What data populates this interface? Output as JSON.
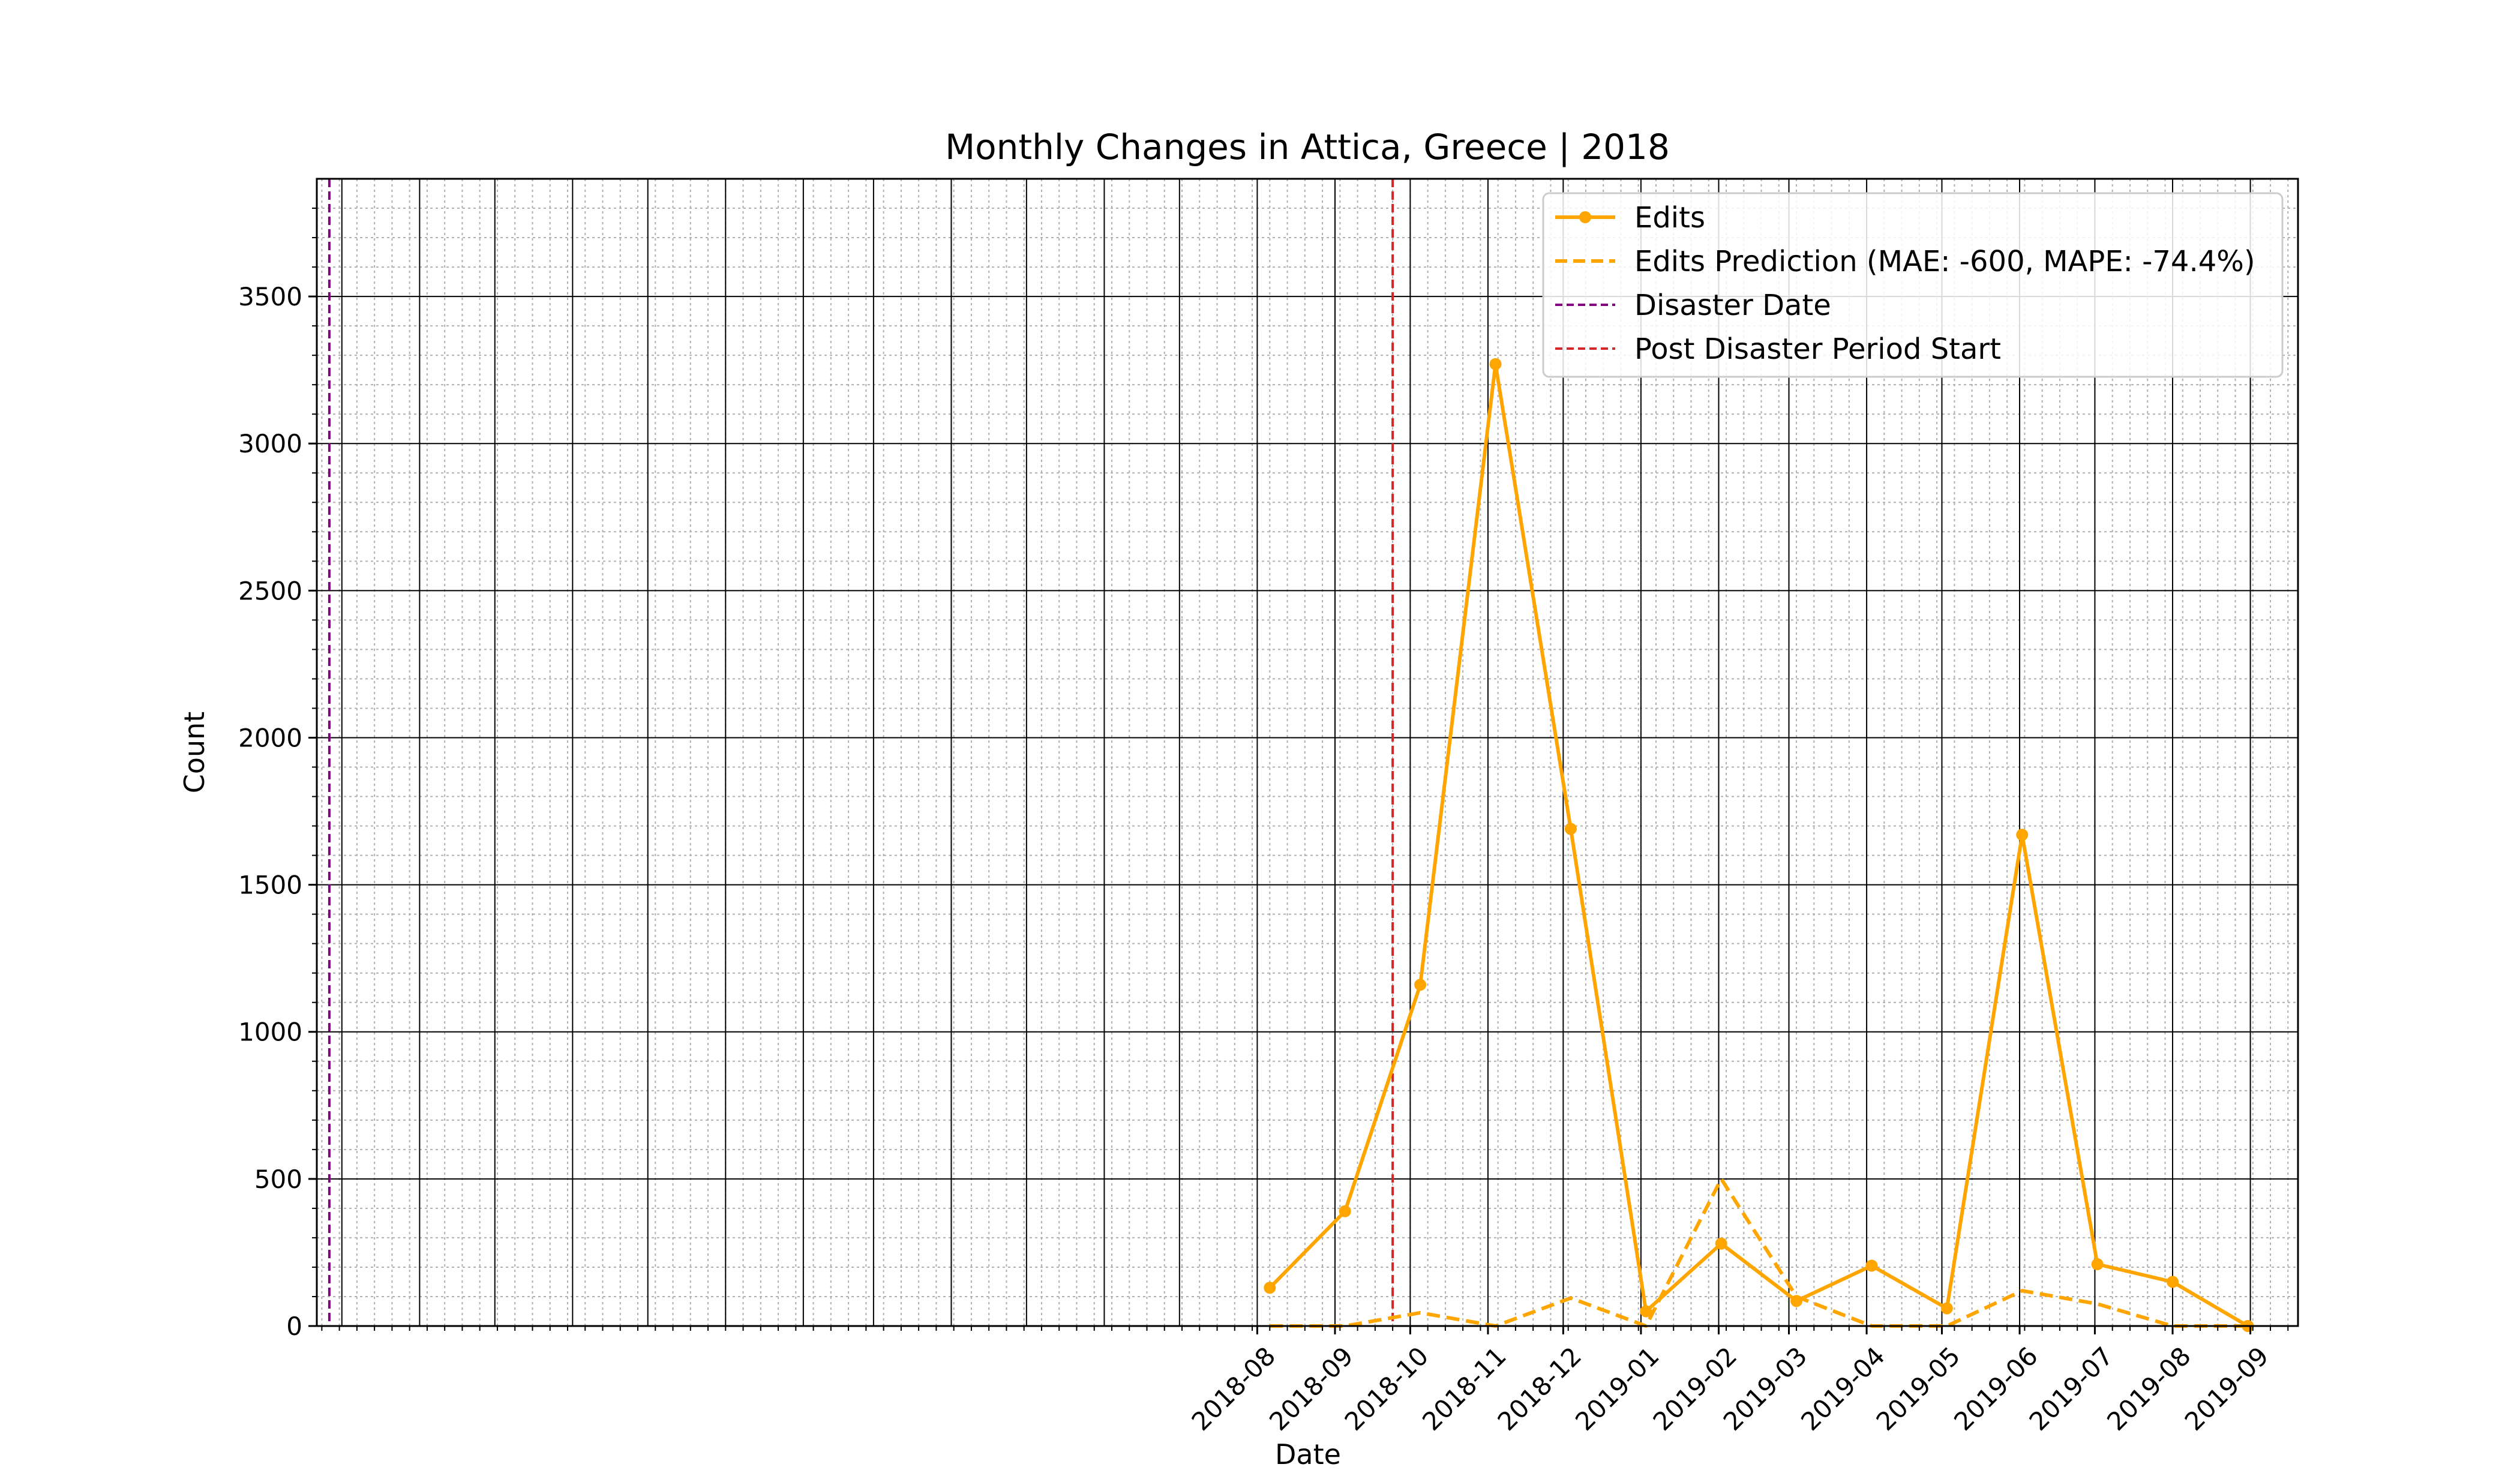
{
  "chart_data": {
    "type": "line",
    "title": "Monthly Changes in Attica, Greece | 2018",
    "xlabel": "Date",
    "ylabel": "Count",
    "ylim": [
      0,
      3900
    ],
    "xlim": [
      "2017-07-22",
      "2019-09-20"
    ],
    "grid": true,
    "legend_position": "top-right",
    "x_ticks": [
      "2018-08",
      "2018-09",
      "2018-10",
      "2018-11",
      "2018-12",
      "2019-01",
      "2019-02",
      "2019-03",
      "2019-04",
      "2019-05",
      "2019-06",
      "2019-07",
      "2019-08",
      "2019-09"
    ],
    "y_ticks": [
      0,
      500,
      1000,
      1500,
      2000,
      2500,
      3000,
      3500
    ],
    "series": [
      {
        "name": "Edits",
        "style": "solid-marker",
        "color": "#ffa500",
        "x": [
          "2018-08-06",
          "2018-09-05",
          "2018-10-05",
          "2018-11-04",
          "2018-12-04",
          "2019-01-03",
          "2019-02-02",
          "2019-03-04",
          "2019-04-03",
          "2019-05-03",
          "2019-06-02",
          "2019-07-02",
          "2019-08-01",
          "2019-08-31"
        ],
        "y": [
          130,
          390,
          1160,
          3270,
          1690,
          50,
          280,
          85,
          205,
          60,
          1670,
          210,
          150,
          0
        ]
      },
      {
        "name": "Edits Prediction (MAE: -600, MAPE: -74.4%)",
        "style": "dashed",
        "color": "#ffa500",
        "x": [
          "2018-08-06",
          "2018-09-05",
          "2018-10-05",
          "2018-11-04",
          "2018-12-04",
          "2019-01-03",
          "2019-02-02",
          "2019-03-04",
          "2019-04-03",
          "2019-05-03",
          "2019-06-02",
          "2019-07-02",
          "2019-08-01",
          "2019-08-31"
        ],
        "y": [
          0,
          0,
          45,
          0,
          95,
          0,
          500,
          100,
          0,
          0,
          120,
          75,
          0,
          0
        ]
      }
    ],
    "vlines": [
      {
        "name": "Disaster Date",
        "x": "2017-07-27",
        "color": "#800080"
      },
      {
        "name": "Post Disaster Period Start",
        "x": "2018-09-24",
        "color": "#d62728"
      }
    ]
  }
}
